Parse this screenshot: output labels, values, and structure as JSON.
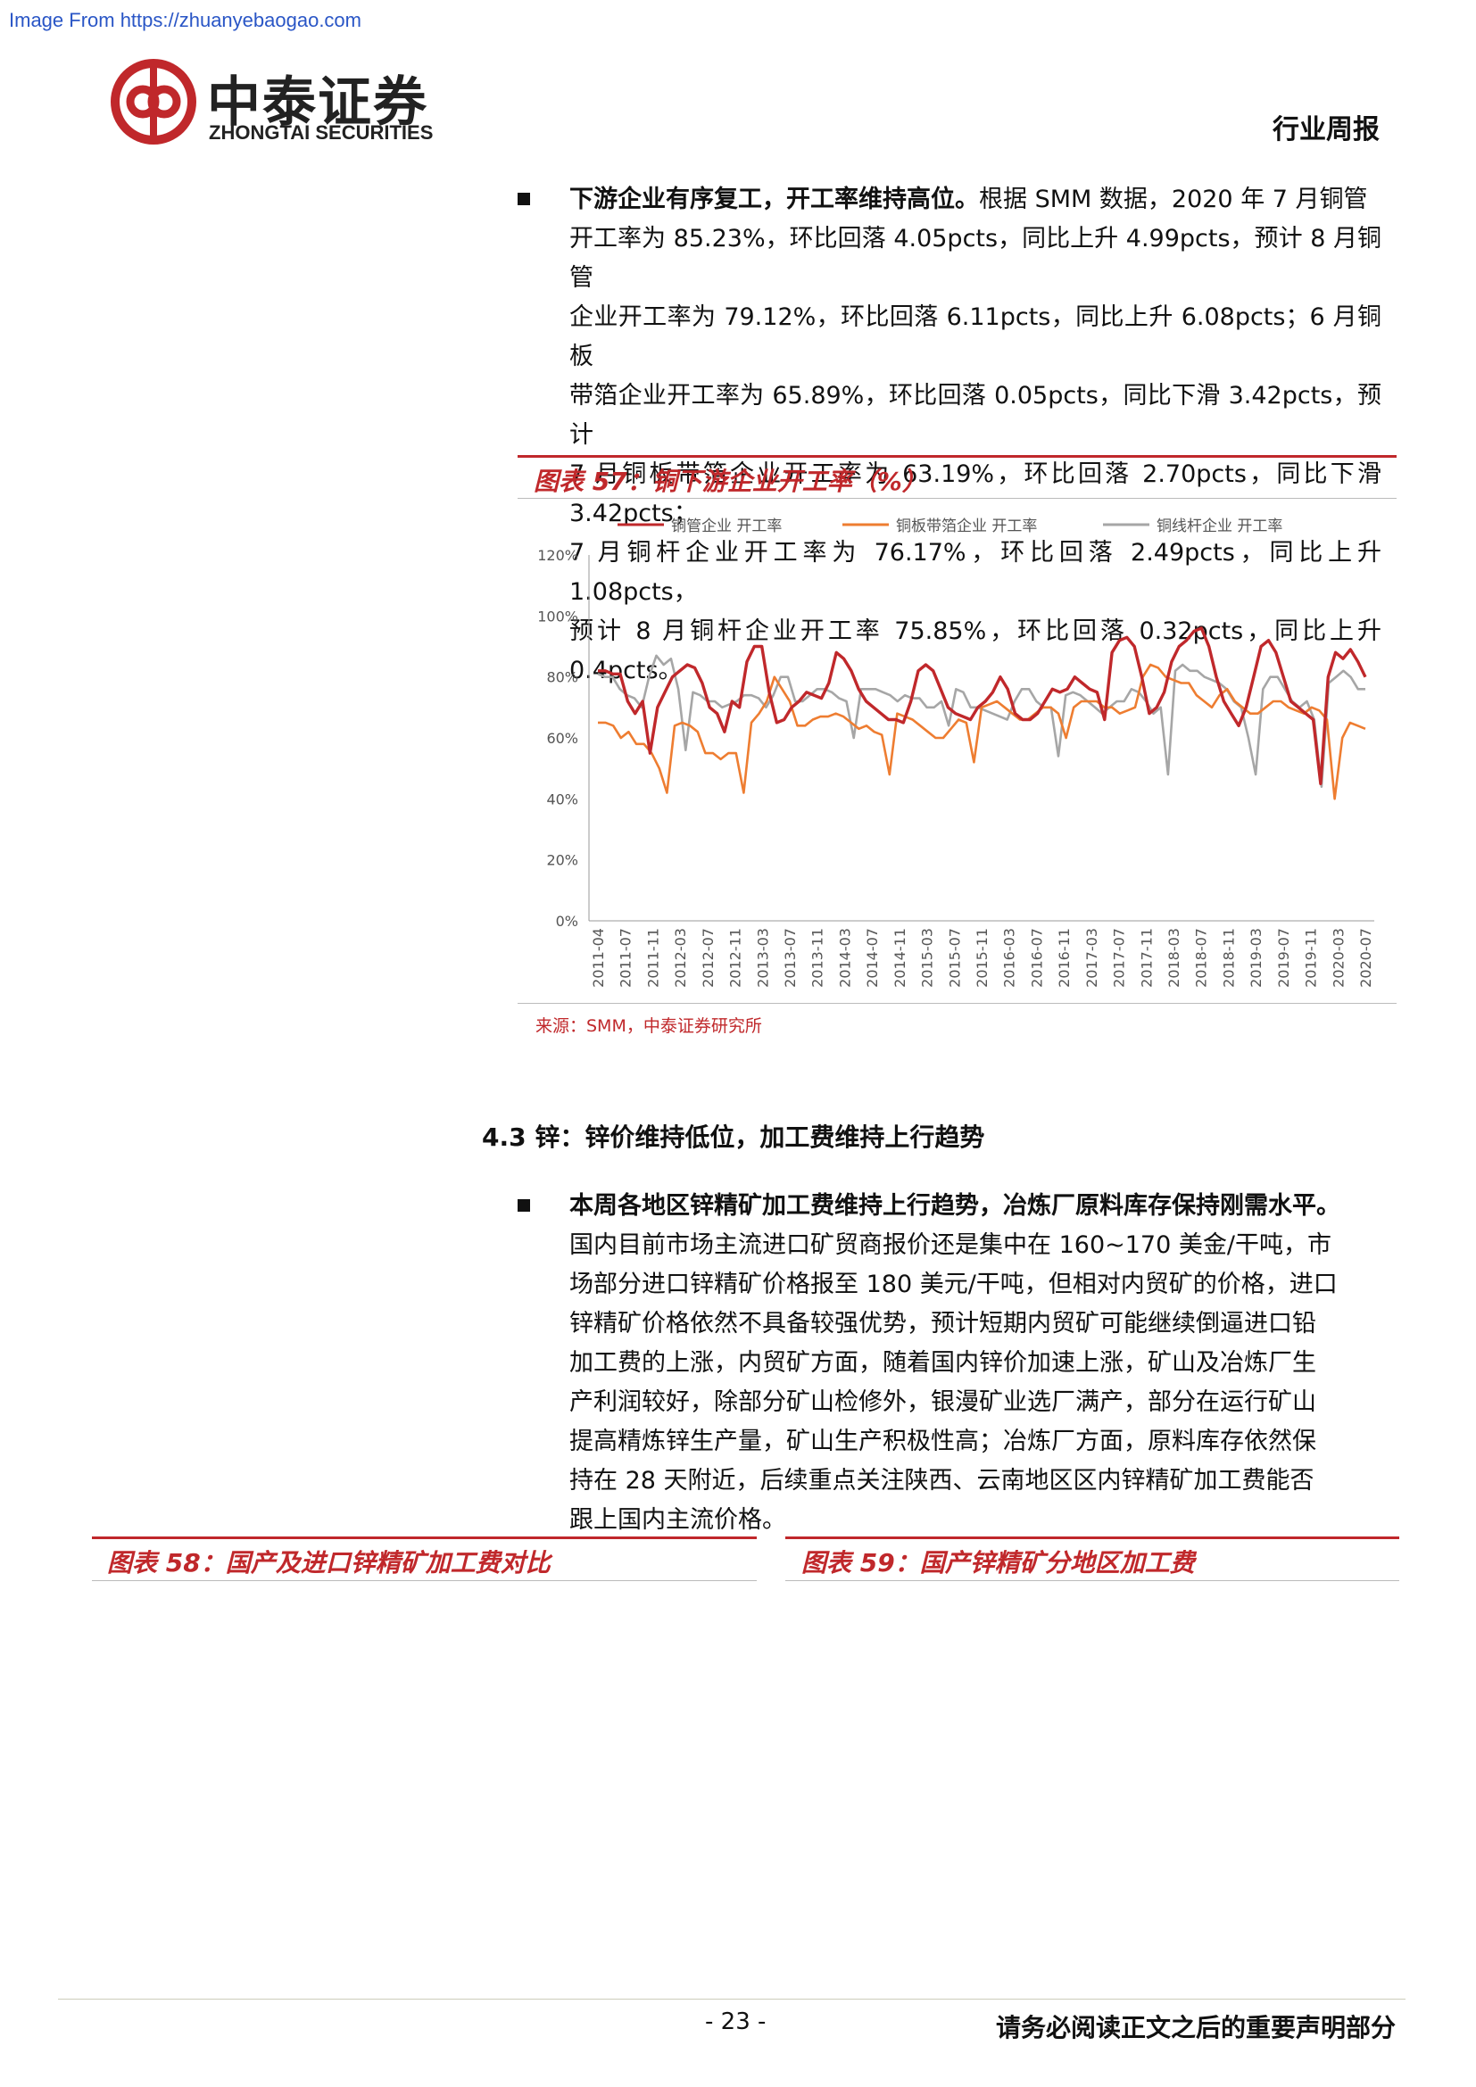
{
  "watermark": "Image From https://zhuanyebaogao.com",
  "logo": {
    "cn": "中泰证券",
    "en": "ZHONGTAI SECURITIES"
  },
  "header": {
    "report_type": "行业周报"
  },
  "para1": {
    "lead": "下游企业有序复工，开工率维持高位。",
    "lines": [
      "根据 SMM 数据，2020 年 7 月铜管",
      "开工率为 85.23%，环比回落 4.05pcts，同比上升 4.99pcts，预计 8 月铜管",
      "企业开工率为 79.12%，环比回落 6.11pcts，同比上升 6.08pcts；6 月铜板",
      "带箔企业开工率为 65.89%，环比回落 0.05pcts，同比下滑 3.42pcts，预计",
      "7 月铜板带箔企业开工率为 63.19%，环比回落 2.70pcts，同比下滑 3.42pcts；",
      "7 月铜杆企业开工率为 76.17%，环比回落 2.49pcts，同比上升 1.08pcts，",
      "预计 8 月铜杆企业开工率 75.85%，环比回落 0.32pcts，同比上升 0.4pcts。"
    ]
  },
  "fig57": {
    "caption": "图表 57：铜下游企业开工率（%）",
    "source": "来源：SMM，中泰证券研究所"
  },
  "section": {
    "title": "4.3 锌：锌价维持低位，加工费维持上行趋势"
  },
  "para2": {
    "lead": "本周各地区锌精矿加工费维持上行趋势，冶炼厂原料库存保持刚需水平。",
    "lines": [
      "国内目前市场主流进口矿贸商报价还是集中在 160~170 美金/干吨，市",
      "场部分进口锌精矿价格报至 180 美元/干吨，但相对内贸矿的价格，进口",
      "锌精矿价格依然不具备较强优势，预计短期内贸矿可能继续倒逼进口铅",
      "加工费的上涨，内贸矿方面，随着国内锌价加速上涨，矿山及冶炼厂生",
      "产利润较好，除部分矿山检修外，银漫矿业选厂满产，部分在运行矿山",
      "提高精炼锌生产量，矿山生产积极性高；冶炼厂方面，原料库存依然保",
      "持在 28 天附近，后续重点关注陕西、云南地区区内锌精矿加工费能否",
      "跟上国内主流价格。"
    ]
  },
  "fig58": {
    "caption": "图表 58：国产及进口锌精矿加工费对比"
  },
  "fig59": {
    "caption": "图表 59：国产锌精矿分地区加工费"
  },
  "footer": {
    "page": "- 23 -",
    "disclaimer": "请务必阅读正文之后的重要声明部分"
  },
  "chart_data": {
    "type": "line",
    "title": "",
    "xlabel": "",
    "ylabel": "",
    "ylim": [
      0,
      120
    ],
    "yticks": [
      "0%",
      "20%",
      "40%",
      "60%",
      "80%",
      "100%",
      "120%"
    ],
    "yvalues": [
      0,
      20,
      40,
      60,
      80,
      100,
      120
    ],
    "xticks": [
      "2011-04",
      "2011-07",
      "2011-11",
      "2012-03",
      "2012-07",
      "2012-11",
      "2013-03",
      "2013-07",
      "2013-11",
      "2014-03",
      "2014-07",
      "2014-11",
      "2015-03",
      "2015-07",
      "2015-11",
      "2016-03",
      "2016-07",
      "2016-11",
      "2017-03",
      "2017-07",
      "2017-11",
      "2018-03",
      "2018-07",
      "2018-11",
      "2019-03",
      "2019-07",
      "2019-11",
      "2020-03",
      "2020-07"
    ],
    "legend_position": "top",
    "grid": false,
    "series": [
      {
        "name": "铜管企业 开工率",
        "color": "#c0282b",
        "values": [
          82,
          82,
          81,
          81,
          72,
          68,
          72,
          55,
          70,
          75,
          80,
          82,
          84,
          83,
          78,
          70,
          68,
          62,
          72,
          70,
          85,
          90,
          90,
          75,
          65,
          66,
          70,
          72,
          75,
          74,
          73,
          78,
          88,
          86,
          82,
          76,
          72,
          70,
          68,
          66,
          66,
          65,
          72,
          82,
          84,
          82,
          76,
          70,
          68,
          67,
          66,
          70,
          72,
          75,
          80,
          76,
          68,
          66,
          66,
          68,
          72,
          76,
          75,
          76,
          80,
          78,
          76,
          75,
          66,
          88,
          92,
          93,
          90,
          80,
          68,
          70,
          75,
          85,
          90,
          92,
          95,
          96,
          90,
          80,
          72,
          68,
          64,
          70,
          80,
          90,
          92,
          88,
          80,
          72,
          70,
          68,
          66,
          45,
          80,
          88,
          86,
          89,
          85,
          80
        ]
      },
      {
        "name": "铜板带箔企业 开工率",
        "color": "#ee7d31",
        "values": [
          65,
          65,
          64,
          60,
          62,
          58,
          58,
          55,
          50,
          42,
          64,
          65,
          64,
          62,
          55,
          55,
          53,
          55,
          55,
          42,
          65,
          68,
          72,
          80,
          76,
          72,
          64,
          64,
          66,
          67,
          67,
          68,
          67,
          65,
          63,
          64,
          62,
          61,
          48,
          68,
          67,
          66,
          64,
          62,
          60,
          60,
          63,
          66,
          65,
          52,
          70,
          71,
          72,
          70,
          68,
          66,
          66,
          68,
          70,
          70,
          68,
          60,
          70,
          72,
          72,
          72,
          70,
          70,
          68,
          69,
          70,
          80,
          84,
          83,
          80,
          79,
          78,
          78,
          74,
          72,
          70,
          74,
          76,
          72,
          70,
          68,
          68,
          70,
          72,
          72,
          70,
          69,
          68,
          70,
          69,
          66,
          40,
          60,
          65,
          64,
          63
        ]
      },
      {
        "name": "铜线杆企业 开工率",
        "color": "#a6a6a6",
        "values": [
          81,
          80,
          80,
          76,
          74,
          73,
          70,
          80,
          87,
          84,
          86,
          76,
          56,
          75,
          74,
          72,
          72,
          70,
          71,
          72,
          74,
          74,
          73,
          70,
          74,
          80,
          80,
          72,
          72,
          74,
          76,
          76,
          75,
          73,
          72,
          60,
          76,
          76,
          76,
          75,
          74,
          72,
          74,
          73,
          73,
          70,
          70,
          72,
          64,
          76,
          75,
          70,
          70,
          69,
          68,
          67,
          66,
          72,
          76,
          76,
          72,
          70,
          70,
          54,
          74,
          75,
          74,
          72,
          70,
          68,
          70,
          72,
          72,
          76,
          75,
          72,
          68,
          70,
          48,
          82,
          84,
          82,
          82,
          80,
          79,
          78,
          76,
          72,
          70,
          60,
          48,
          76,
          80,
          80,
          76,
          72,
          70,
          72,
          66,
          44,
          78,
          80,
          82,
          80,
          76,
          76
        ]
      }
    ]
  }
}
